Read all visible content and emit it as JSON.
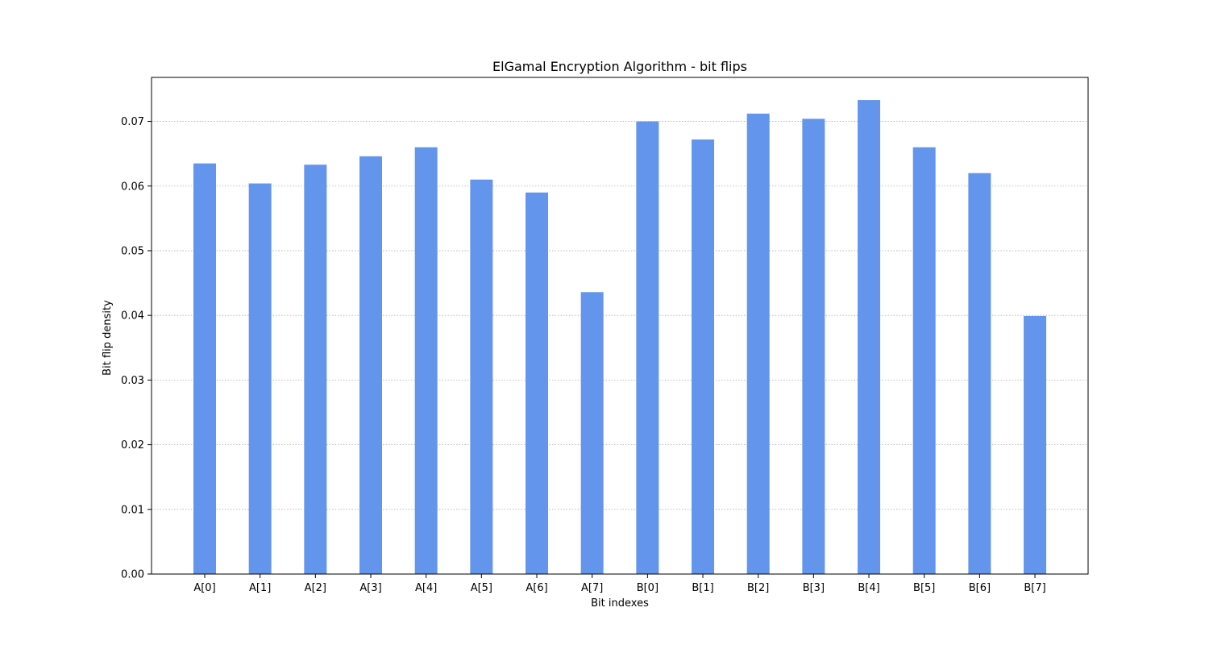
{
  "chart_data": {
    "type": "bar",
    "title": "ElGamal Encryption Algorithm - bit flips",
    "xlabel": "Bit indexes",
    "ylabel": "Bit flip density",
    "categories": [
      "A[0]",
      "A[1]",
      "A[2]",
      "A[3]",
      "A[4]",
      "A[5]",
      "A[6]",
      "A[7]",
      "B[0]",
      "B[1]",
      "B[2]",
      "B[3]",
      "B[4]",
      "B[5]",
      "B[6]",
      "B[7]"
    ],
    "values": [
      0.0635,
      0.0604,
      0.0633,
      0.0646,
      0.066,
      0.061,
      0.059,
      0.0436,
      0.07,
      0.0672,
      0.0712,
      0.0704,
      0.0733,
      0.066,
      0.062,
      0.0399
    ],
    "ylim": [
      0,
      0.0768
    ],
    "yticks": [
      "0.00",
      "0.01",
      "0.02",
      "0.03",
      "0.04",
      "0.05",
      "0.06",
      "0.07"
    ],
    "ytick_values": [
      0.0,
      0.01,
      0.02,
      0.03,
      0.04,
      0.05,
      0.06,
      0.07
    ],
    "grid": "y-dotted",
    "bar_color": "#6495ed",
    "grid_color": "#b0b0b0"
  }
}
